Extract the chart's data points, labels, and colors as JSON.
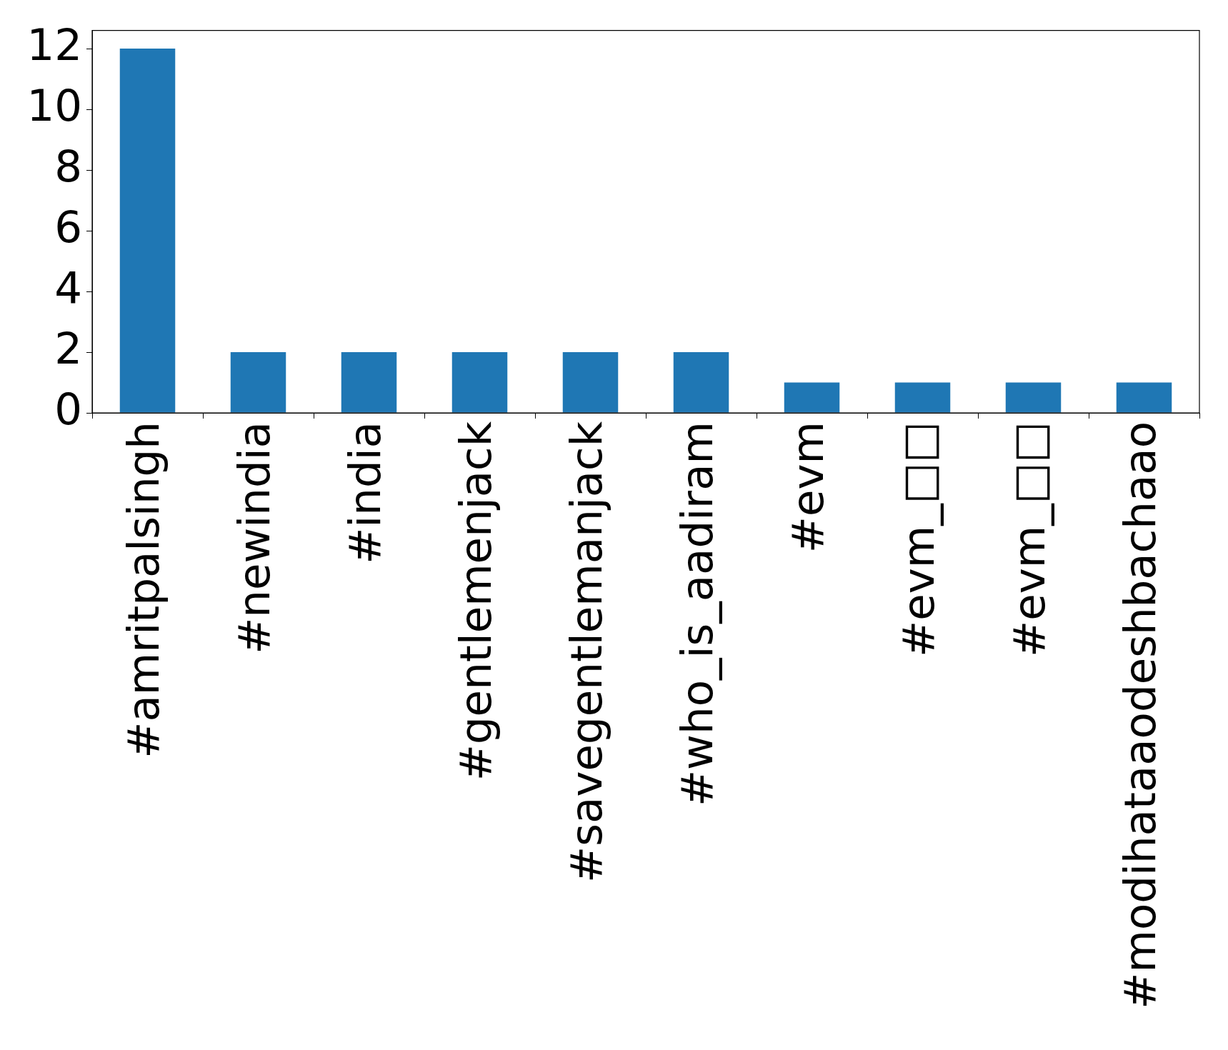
{
  "chart_data": {
    "type": "bar",
    "categories": [
      "#amritpalsingh",
      "#newindia",
      "#india",
      "#gentlemenjack",
      "#savegentlemanjack",
      "#who_is_aadiram",
      "#evm",
      "#evm_□□",
      "#evm_□□",
      "#modihataaodeshbachaao"
    ],
    "values": [
      12,
      2,
      2,
      2,
      2,
      2,
      1,
      1,
      1,
      1
    ],
    "color": "#1f77b4",
    "ylim": [
      0,
      12.6
    ],
    "yticks": [
      0,
      2,
      4,
      6,
      8,
      10,
      12
    ],
    "grid": false,
    "legend": false
  }
}
